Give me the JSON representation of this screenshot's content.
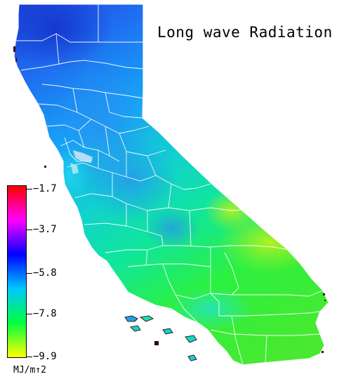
{
  "map": {
    "title": "Long wave Radiation",
    "units_label": "MJ/m↑2",
    "region": "California counties"
  },
  "legend": {
    "ticks": [
      {
        "label": "−1.7",
        "value": -1.7
      },
      {
        "label": "−3.7",
        "value": -3.7
      },
      {
        "label": "−5.8",
        "value": -5.8
      },
      {
        "label": "−7.8",
        "value": -7.8
      },
      {
        "label": "−9.9",
        "value": -9.9
      }
    ],
    "colors": [
      "#ff0000",
      "#ff00ff",
      "#0000ff",
      "#00c8ff",
      "#00ff40",
      "#ffff00"
    ]
  }
}
